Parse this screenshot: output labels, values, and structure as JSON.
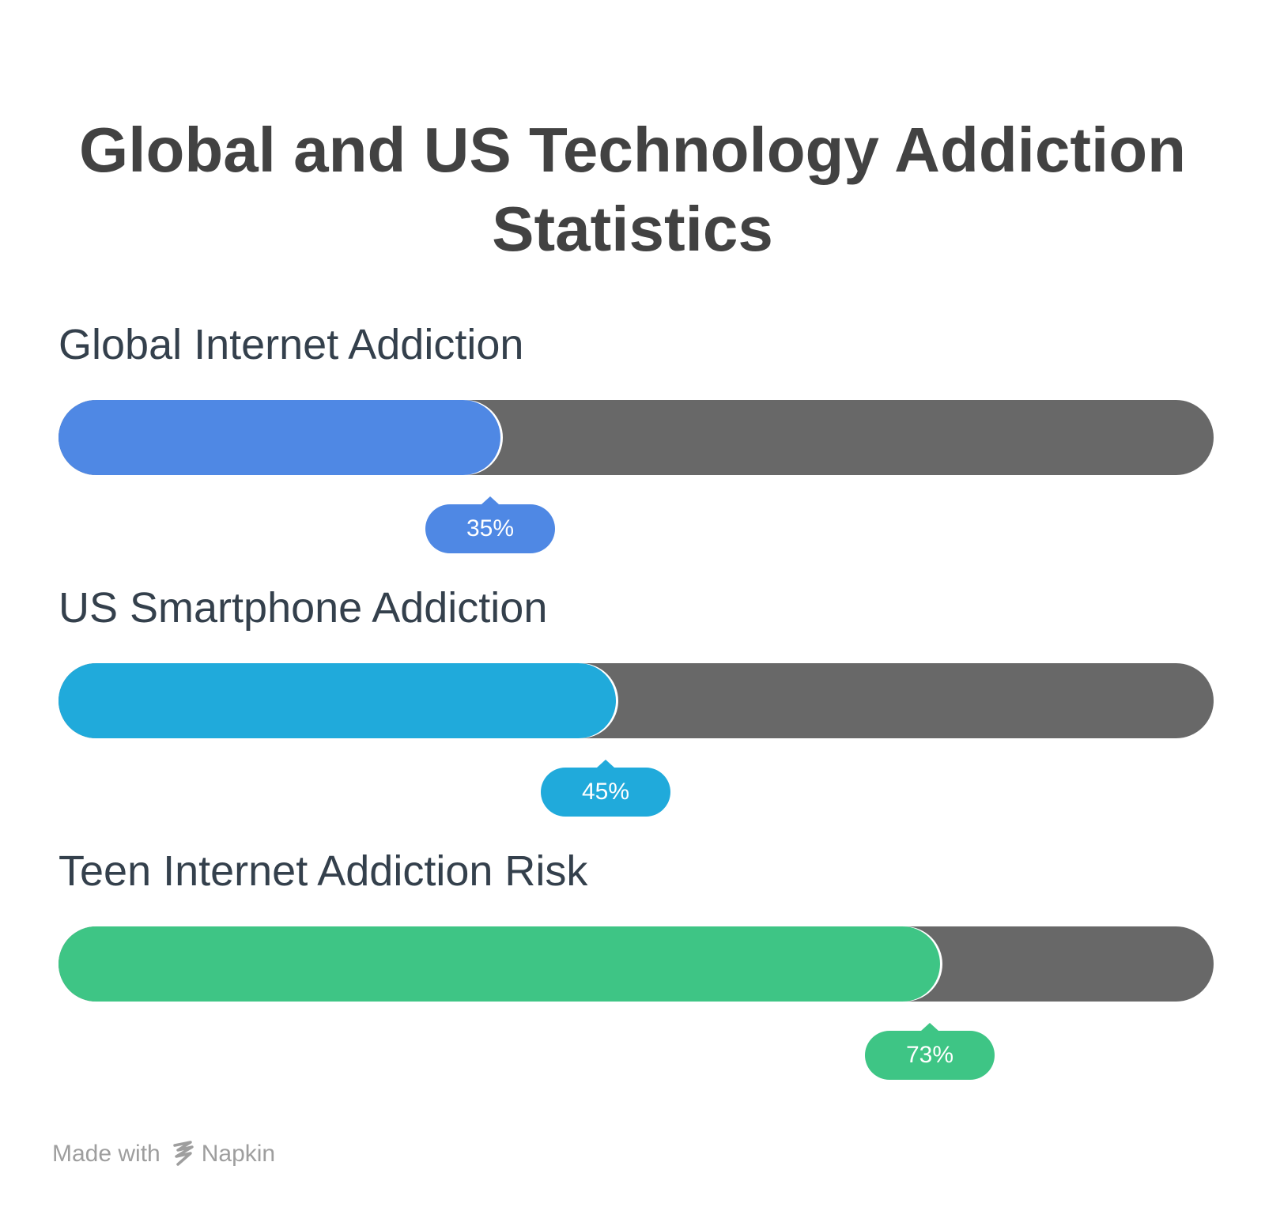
{
  "title_line1": "Global and US Technology Addiction",
  "title_line2": "Statistics",
  "chart_data": {
    "type": "bar",
    "orientation": "horizontal",
    "ylim": [
      0,
      100
    ],
    "unit": "%",
    "categories": [
      "Global Internet Addiction",
      "US Smartphone Addiction",
      "Teen Internet Addiction Risk"
    ],
    "values": [
      35,
      45,
      73
    ],
    "value_labels": [
      "35%",
      "45%",
      "73%"
    ],
    "colors": [
      "#4f88e4",
      "#20aadb",
      "#3ec585"
    ],
    "track_color": "#686868"
  },
  "footer": {
    "made_with": "Made with",
    "brand": "Napkin",
    "icon": "napkin-logo-icon"
  }
}
